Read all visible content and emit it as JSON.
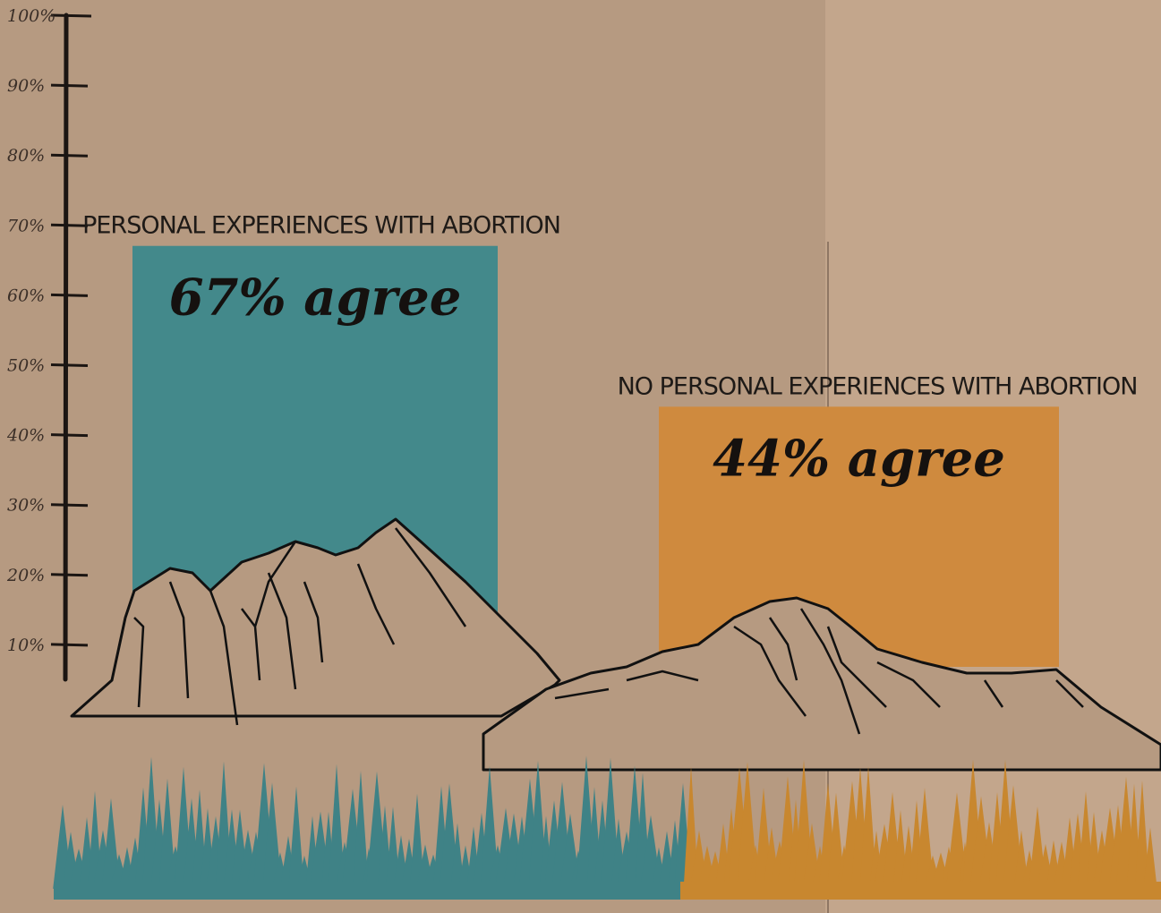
{
  "chart_data": {
    "type": "bar",
    "categories": [
      "PERSONAL EXPERIENCES WITH ABORTION",
      "NO PERSONAL EXPERIENCES WITH ABORTION"
    ],
    "values": [
      67,
      44
    ],
    "data_labels": [
      "67% agree",
      "44% agree"
    ],
    "yticks": [
      "10%",
      "20%",
      "30%",
      "40%",
      "50%",
      "60%",
      "70%",
      "80%",
      "90%",
      "100%"
    ],
    "ylim": [
      0,
      100
    ],
    "grid": false,
    "colors": [
      "#43898b",
      "#cf8a3e"
    ]
  }
}
